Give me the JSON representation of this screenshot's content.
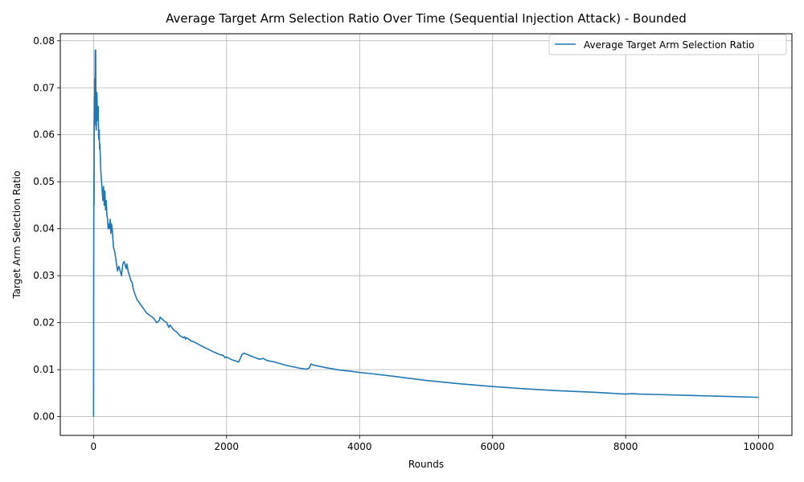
{
  "chart_data": {
    "type": "line",
    "title": "Average Target Arm Selection Ratio Over Time (Sequential Injection Attack) - Bounded",
    "xlabel": "Rounds",
    "ylabel": "Target Arm Selection Ratio",
    "xlim": [
      -500,
      10500
    ],
    "ylim": [
      -0.004,
      0.0815
    ],
    "xticks": [
      0,
      2000,
      4000,
      6000,
      8000,
      10000
    ],
    "yticks": [
      0.0,
      0.01,
      0.02,
      0.03,
      0.04,
      0.05,
      0.06,
      0.07,
      0.08
    ],
    "ytick_labels": [
      "0.00",
      "0.01",
      "0.02",
      "0.03",
      "0.04",
      "0.05",
      "0.06",
      "0.07",
      "0.08"
    ],
    "grid": true,
    "legend_position": "top-right",
    "series": [
      {
        "name": "Average Target Arm Selection Ratio",
        "color": "#1f77b4",
        "x": [
          0,
          2,
          4,
          6,
          8,
          10,
          12,
          14,
          16,
          18,
          20,
          22,
          25,
          28,
          32,
          36,
          40,
          45,
          50,
          55,
          60,
          65,
          70,
          75,
          80,
          85,
          90,
          95,
          100,
          110,
          120,
          130,
          140,
          150,
          160,
          170,
          180,
          190,
          200,
          210,
          220,
          230,
          240,
          250,
          260,
          270,
          280,
          290,
          300,
          320,
          340,
          360,
          380,
          400,
          420,
          440,
          460,
          470,
          480,
          490,
          500,
          520,
          540,
          560,
          580,
          600,
          650,
          700,
          750,
          800,
          850,
          900,
          950,
          990,
          1000,
          1050,
          1100,
          1130,
          1150,
          1200,
          1250,
          1300,
          1350,
          1370,
          1380,
          1400,
          1450,
          1480,
          1500,
          1600,
          1700,
          1800,
          1900,
          1950,
          1980,
          2000,
          2050,
          2100,
          2150,
          2180,
          2200,
          2230,
          2260,
          2300,
          2400,
          2500,
          2550,
          2600,
          2650,
          2700,
          2800,
          2900,
          3000,
          3100,
          3200,
          3240,
          3270,
          3300,
          3500,
          3700,
          3900,
          4000,
          4200,
          4500,
          5000,
          5500,
          6000,
          6500,
          7000,
          7500,
          8000,
          8100,
          8200,
          8500,
          9000,
          9500,
          10000
        ],
        "values": [
          0.0,
          0.028,
          0.043,
          0.052,
          0.045,
          0.063,
          0.062,
          0.068,
          0.062,
          0.072,
          0.063,
          0.066,
          0.078,
          0.064,
          0.078,
          0.063,
          0.061,
          0.063,
          0.069,
          0.066,
          0.064,
          0.063,
          0.066,
          0.06,
          0.059,
          0.061,
          0.057,
          0.058,
          0.056,
          0.052,
          0.05,
          0.048,
          0.046,
          0.049,
          0.045,
          0.048,
          0.044,
          0.046,
          0.043,
          0.042,
          0.04,
          0.041,
          0.04,
          0.042,
          0.039,
          0.041,
          0.04,
          0.038,
          0.036,
          0.035,
          0.033,
          0.031,
          0.032,
          0.031,
          0.03,
          0.0325,
          0.033,
          0.0325,
          0.032,
          0.0315,
          0.0325,
          0.031,
          0.03,
          0.029,
          0.0285,
          0.027,
          0.025,
          0.024,
          0.023,
          0.022,
          0.0215,
          0.021,
          0.02,
          0.0205,
          0.0212,
          0.0205,
          0.02,
          0.019,
          0.0195,
          0.0185,
          0.018,
          0.0172,
          0.0168,
          0.017,
          0.0165,
          0.0168,
          0.0163,
          0.016,
          0.016,
          0.0152,
          0.0145,
          0.0138,
          0.0132,
          0.013,
          0.0125,
          0.0127,
          0.0123,
          0.012,
          0.0118,
          0.0116,
          0.0122,
          0.0132,
          0.0135,
          0.0133,
          0.0127,
          0.0122,
          0.0124,
          0.012,
          0.0118,
          0.0117,
          0.0113,
          0.0109,
          0.0106,
          0.0103,
          0.0101,
          0.0103,
          0.0112,
          0.011,
          0.0104,
          0.0099,
          0.0096,
          0.0094,
          0.0091,
          0.0086,
          0.0077,
          0.007,
          0.0064,
          0.0059,
          0.0055,
          0.0052,
          0.0048,
          0.0049,
          0.0048,
          0.0047,
          0.0045,
          0.0043,
          0.0041
        ]
      }
    ]
  }
}
